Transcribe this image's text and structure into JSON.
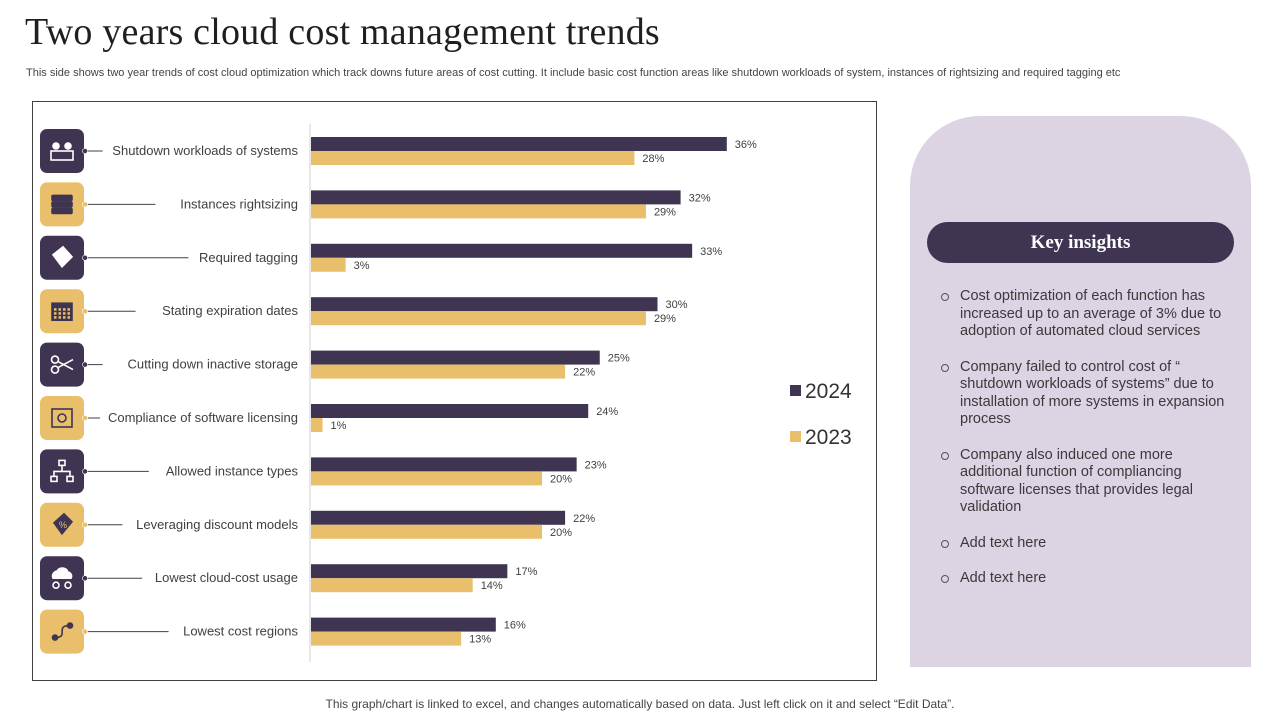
{
  "page": {
    "title": "Two years cloud cost management trends",
    "subtitle": "This side shows two year trends of cost cloud optimization which track downs future areas of cost cutting. It include basic cost function areas like shutdown workloads of system, instances of rightsizing and required tagging etc",
    "footer": "This graph/chart is linked to excel,  and changes automatically based on data. Just left click on it and select “Edit Data”."
  },
  "colors": {
    "series_2024": "#3f3552",
    "series_2023": "#e9bf6c",
    "panel_bg": "#dcd3e3",
    "header_bg": "#3f3552"
  },
  "chart_data": {
    "type": "bar",
    "orientation": "horizontal",
    "categories": [
      "Shutdown workloads of systems",
      "Instances rightsizing",
      "Required tagging",
      "Stating expiration dates",
      "Cutting down inactive storage",
      "Compliance of software licensing",
      "Allowed instance types",
      "Leveraging discount models",
      "Lowest cloud-cost usage",
      "Lowest cost regions"
    ],
    "series": [
      {
        "name": "2024",
        "values": [
          36,
          32,
          33,
          30,
          25,
          24,
          23,
          22,
          17,
          16
        ],
        "labels": [
          "36%",
          "32%",
          "33%",
          "30%",
          "25%",
          "24%",
          "23%",
          "22%",
          "17%",
          "16%"
        ]
      },
      {
        "name": "2023",
        "values": [
          28,
          29,
          3,
          29,
          22,
          1,
          20,
          20,
          14,
          13
        ],
        "labels": [
          "28%",
          "29%",
          "3%",
          "29%",
          "22%",
          "1%",
          "20%",
          "20%",
          "14%",
          "13%"
        ]
      }
    ],
    "xlim": [
      0,
      40
    ],
    "unit": "%",
    "legend_position": "right",
    "grid": false
  },
  "category_icons": [
    "workload-people-icon",
    "server-stack-icon",
    "price-tag-icon",
    "calendar-icon",
    "scissors-icon",
    "license-certificate-icon",
    "network-hierarchy-icon",
    "discount-tag-icon",
    "cloud-money-icon",
    "route-map-icon"
  ],
  "insights": {
    "header": "Key insights",
    "items": [
      "Cost optimization of each function has increased  up to an average of 3% due to adoption of automated cloud services",
      "Company failed to control cost of “ shutdown workloads of systems” due to installation of more systems in expansion process",
      "Company also induced one more additional function of compliancing software licenses that provides legal validation",
      "Add text here",
      "Add text here"
    ]
  }
}
